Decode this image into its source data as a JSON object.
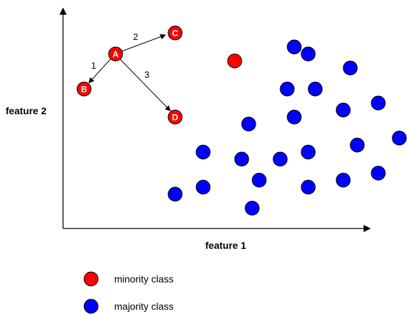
{
  "axes": {
    "x_label": "feature 1",
    "y_label": "feature 2"
  },
  "colors": {
    "minority": "#ff0000",
    "majority": "#0000ff",
    "axis": "#000000"
  },
  "minority_nodes": [
    {
      "label": "A"
    },
    {
      "label": "B"
    },
    {
      "label": "C"
    },
    {
      "label": "D"
    },
    {
      "label": ""
    }
  ],
  "edges": [
    {
      "from": "A",
      "to": "B",
      "label": "1"
    },
    {
      "from": "A",
      "to": "C",
      "label": "2"
    },
    {
      "from": "A",
      "to": "D",
      "label": "3"
    }
  ],
  "legend": {
    "minority_label": "minority class",
    "majority_label": "majority class"
  }
}
